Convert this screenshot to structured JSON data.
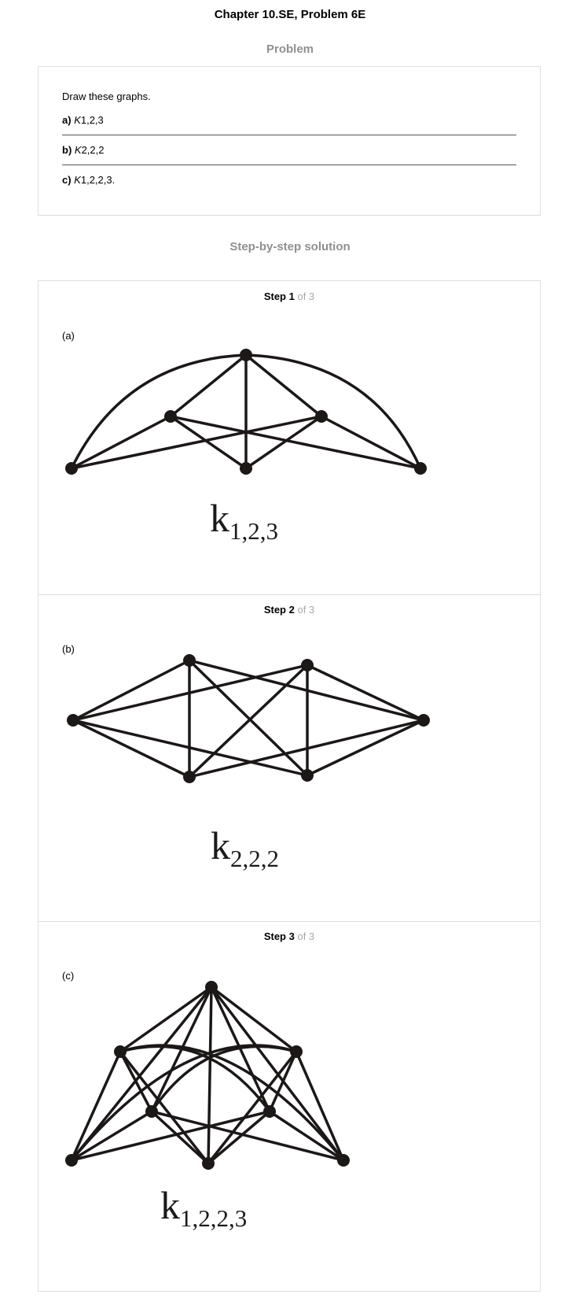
{
  "header": {
    "title": "Chapter 10.SE, Problem 6E"
  },
  "problem": {
    "heading": "Problem",
    "intro": "Draw these graphs.",
    "parts": [
      {
        "label": "a)",
        "graph": "K",
        "sub": "1,2,3",
        "suffix": ""
      },
      {
        "label": "b)",
        "graph": "K",
        "sub": "2,2,2",
        "suffix": ""
      },
      {
        "label": "c)",
        "graph": "K",
        "sub": "1,2,2,3",
        "suffix": "."
      }
    ]
  },
  "solution": {
    "heading": "Step-by-step solution",
    "steps": [
      {
        "step_word": "Step 1",
        "of_text": "of 3",
        "part_label": "(a)",
        "caption_main": "k",
        "caption_sub": "1,2,3",
        "diagram": {
          "nodes": [
            {
              "id": "top"
            },
            {
              "id": "left-mid"
            },
            {
              "id": "right-mid"
            },
            {
              "id": "bottom-left"
            },
            {
              "id": "bottom-center"
            },
            {
              "id": "bottom-right"
            }
          ],
          "edges": [
            [
              "top",
              "left-mid"
            ],
            [
              "top",
              "right-mid"
            ],
            [
              "top",
              "bottom-center"
            ],
            [
              "top",
              "bottom-left"
            ],
            [
              "top",
              "bottom-right"
            ],
            [
              "left-mid",
              "bottom-left"
            ],
            [
              "left-mid",
              "bottom-center"
            ],
            [
              "left-mid",
              "bottom-right"
            ],
            [
              "right-mid",
              "bottom-left"
            ],
            [
              "right-mid",
              "bottom-center"
            ],
            [
              "right-mid",
              "bottom-right"
            ]
          ]
        }
      },
      {
        "step_word": "Step 2",
        "of_text": "of 3",
        "part_label": "(b)",
        "caption_main": "k",
        "caption_sub": "2,2,2",
        "diagram": {
          "nodes": [
            {
              "id": "left"
            },
            {
              "id": "top-left"
            },
            {
              "id": "top-right"
            },
            {
              "id": "bottom-left"
            },
            {
              "id": "bottom-right"
            },
            {
              "id": "right"
            }
          ],
          "edges": [
            [
              "left",
              "top-left"
            ],
            [
              "left",
              "top-right"
            ],
            [
              "left",
              "bottom-left"
            ],
            [
              "left",
              "bottom-right"
            ],
            [
              "right",
              "top-left"
            ],
            [
              "right",
              "top-right"
            ],
            [
              "right",
              "bottom-left"
            ],
            [
              "right",
              "bottom-right"
            ],
            [
              "top-left",
              "bottom-left"
            ],
            [
              "top-left",
              "bottom-right"
            ],
            [
              "top-right",
              "bottom-left"
            ],
            [
              "top-right",
              "bottom-right"
            ]
          ]
        }
      },
      {
        "step_word": "Step 3",
        "of_text": "of 3",
        "part_label": "(c)",
        "caption_main": "k",
        "caption_sub": "1,2,2,3",
        "diagram": {
          "nodes": [
            {
              "id": "top"
            },
            {
              "id": "upper-left"
            },
            {
              "id": "upper-right"
            },
            {
              "id": "inner-left"
            },
            {
              "id": "inner-right"
            },
            {
              "id": "bottom-left"
            },
            {
              "id": "bottom-center"
            },
            {
              "id": "bottom-right"
            }
          ],
          "edges": [
            [
              "top",
              "upper-left"
            ],
            [
              "top",
              "upper-right"
            ],
            [
              "top",
              "inner-left"
            ],
            [
              "top",
              "inner-right"
            ],
            [
              "top",
              "bottom-left"
            ],
            [
              "top",
              "bottom-center"
            ],
            [
              "top",
              "bottom-right"
            ],
            [
              "upper-left",
              "inner-left"
            ],
            [
              "upper-left",
              "inner-right"
            ],
            [
              "upper-left",
              "bottom-left"
            ],
            [
              "upper-left",
              "bottom-center"
            ],
            [
              "upper-left",
              "bottom-right"
            ],
            [
              "upper-right",
              "inner-left"
            ],
            [
              "upper-right",
              "inner-right"
            ],
            [
              "upper-right",
              "bottom-left"
            ],
            [
              "upper-right",
              "bottom-center"
            ],
            [
              "upper-right",
              "bottom-right"
            ],
            [
              "inner-left",
              "bottom-left"
            ],
            [
              "inner-left",
              "bottom-center"
            ],
            [
              "inner-left",
              "bottom-right"
            ],
            [
              "inner-right",
              "bottom-left"
            ],
            [
              "inner-right",
              "bottom-center"
            ],
            [
              "inner-right",
              "bottom-right"
            ]
          ]
        }
      }
    ]
  }
}
